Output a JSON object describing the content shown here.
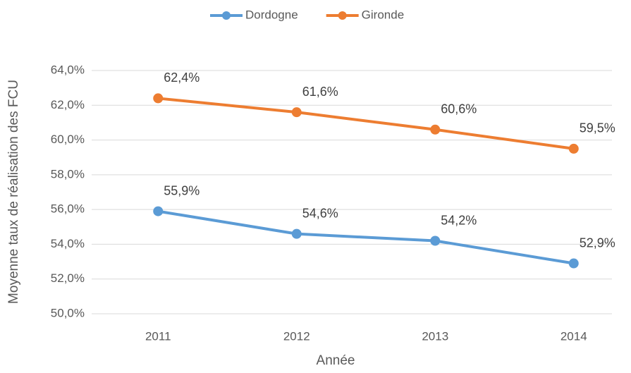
{
  "chart_data": {
    "type": "line",
    "x_label": "Année",
    "y_label": "Moyenne taux de réalisation des FCU",
    "categories": [
      "2011",
      "2012",
      "2013",
      "2014"
    ],
    "series": [
      {
        "name": "Dordogne",
        "color": "#5b9bd5",
        "values": [
          55.9,
          54.6,
          54.2,
          52.9
        ],
        "value_labels": [
          "55,9%",
          "54,6%",
          "54,2%",
          "52,9%"
        ]
      },
      {
        "name": "Gironde",
        "color": "#ed7d31",
        "values": [
          62.4,
          61.6,
          60.6,
          59.5
        ],
        "value_labels": [
          "62,4%",
          "61,6%",
          "60,6%",
          "59,5%"
        ]
      }
    ],
    "ylim": [
      50,
      64
    ],
    "yticks": [
      {
        "value": 50,
        "label": "50,0%"
      },
      {
        "value": 52,
        "label": "52,0%"
      },
      {
        "value": 54,
        "label": "54,0%"
      },
      {
        "value": 56,
        "label": "56,0%"
      },
      {
        "value": 58,
        "label": "58,0%"
      },
      {
        "value": 60,
        "label": "60,0%"
      },
      {
        "value": 62,
        "label": "62,0%"
      },
      {
        "value": 64,
        "label": "64,0%"
      }
    ],
    "grid": true,
    "legend": "top"
  }
}
